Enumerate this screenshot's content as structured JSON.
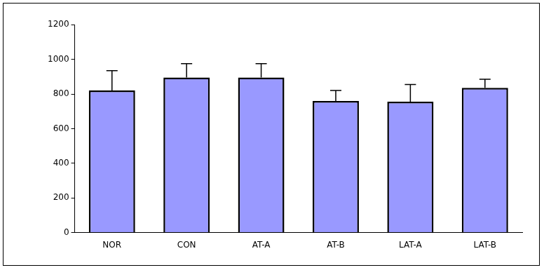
{
  "chart_data": {
    "type": "bar",
    "categories": [
      "NOR",
      "CON",
      "AT-A",
      "AT-B",
      "LAT-A",
      "LAT-B"
    ],
    "values": [
      820,
      895,
      895,
      760,
      755,
      835
    ],
    "errors": [
      115,
      80,
      80,
      60,
      100,
      50
    ],
    "color": "#9999ff",
    "ylim": [
      0,
      1200
    ],
    "yticks": [
      0,
      200,
      400,
      600,
      800,
      1000,
      1200
    ],
    "grid": false
  }
}
